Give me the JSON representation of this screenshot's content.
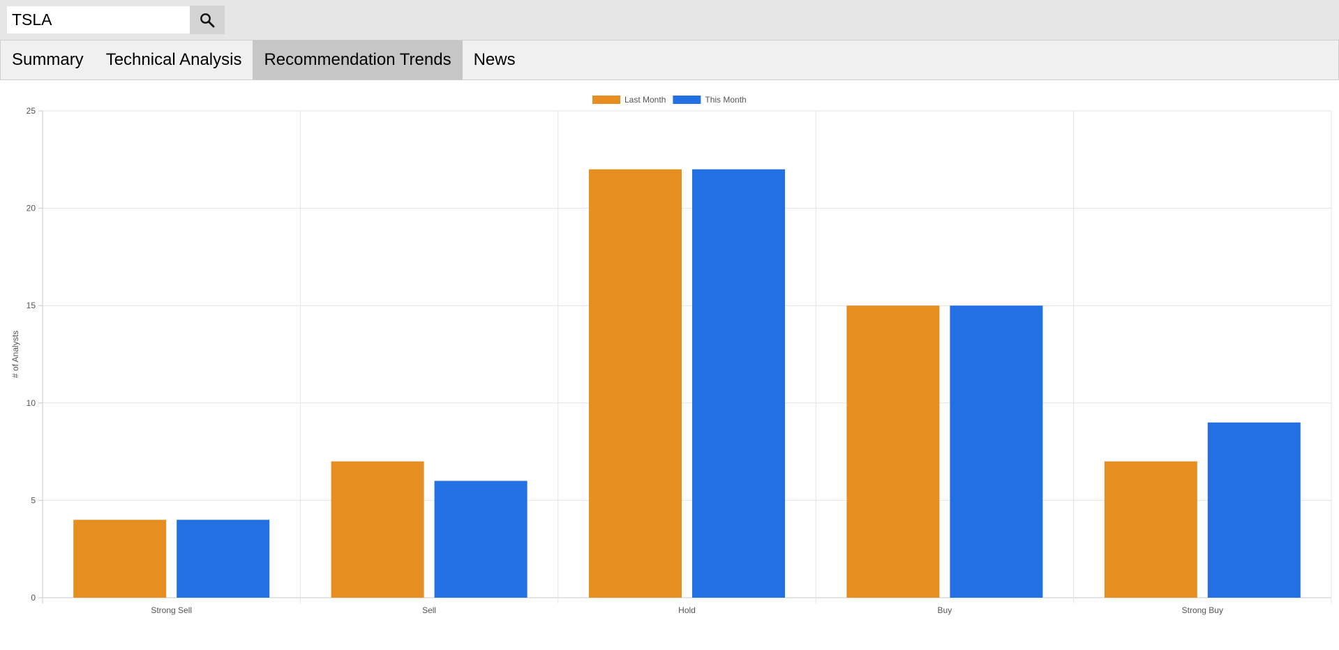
{
  "search": {
    "value": "TSLA",
    "icon": "search-icon"
  },
  "tabs": [
    {
      "label": "Summary",
      "active": false
    },
    {
      "label": "Technical Analysis",
      "active": false
    },
    {
      "label": "Recommendation Trends",
      "active": true
    },
    {
      "label": "News",
      "active": false
    }
  ],
  "chart_data": {
    "type": "bar",
    "categories": [
      "Strong Sell",
      "Sell",
      "Hold",
      "Buy",
      "Strong Buy"
    ],
    "series": [
      {
        "name": "Last Month",
        "values": [
          4,
          7,
          22,
          15,
          7
        ],
        "color": "#e68e1f"
      },
      {
        "name": "This Month",
        "values": [
          4,
          6,
          22,
          15,
          9
        ],
        "color": "#2370e3"
      }
    ],
    "ylabel": "# of Analysts",
    "xlabel": "",
    "ylim": [
      0,
      25
    ],
    "yticks": [
      0,
      5,
      10,
      15,
      20,
      25
    ],
    "grid": true,
    "legend_position": "top-center"
  }
}
